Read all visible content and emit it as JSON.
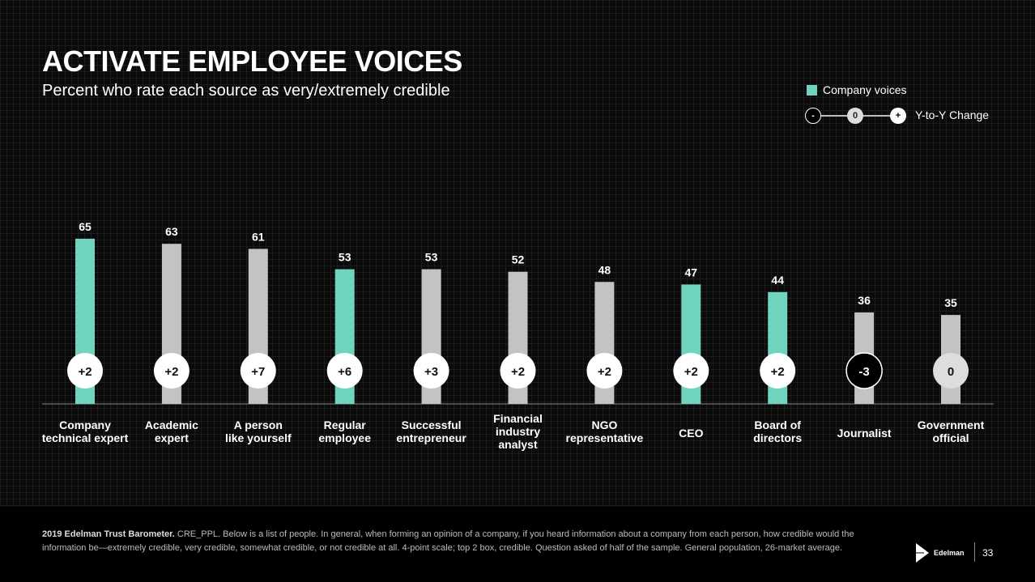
{
  "header": {
    "title": "ACTIVATE EMPLOYEE VOICES",
    "subtitle": "Percent who rate each source as very/extremely credible"
  },
  "legend": {
    "company_voices": "Company voices",
    "change_label": "Y-to-Y Change",
    "minus": "-",
    "zero": "0",
    "plus": "+"
  },
  "colors": {
    "company": "#6fd3c0",
    "other": "#c3c3c3"
  },
  "chart_data": {
    "type": "bar",
    "title": "ACTIVATE EMPLOYEE VOICES",
    "ylabel": "Percent who rate each source as very/extremely credible",
    "ylim": [
      0,
      100
    ],
    "categories": [
      [
        "Company",
        "technical expert"
      ],
      [
        "Academic",
        "expert"
      ],
      [
        "A person",
        "like yourself"
      ],
      [
        "Regular",
        "employee"
      ],
      [
        "Successful",
        "entrepreneur"
      ],
      [
        "Financial",
        "industry",
        "analyst"
      ],
      [
        "NGO",
        "representative"
      ],
      [
        "CEO"
      ],
      [
        "Board of",
        "directors"
      ],
      [
        "Journalist"
      ],
      [
        "Government",
        "official"
      ]
    ],
    "values": [
      65,
      63,
      61,
      53,
      53,
      52,
      48,
      47,
      44,
      36,
      35
    ],
    "company_voice": [
      true,
      false,
      false,
      true,
      false,
      false,
      false,
      true,
      true,
      false,
      false
    ],
    "change": [
      "+2",
      "+2",
      "+7",
      "+6",
      "+3",
      "+2",
      "+2",
      "+2",
      "+2",
      "-3",
      "0"
    ]
  },
  "footer": {
    "note_bold": "2019 Edelman Trust Barometer.",
    "note": " CRE_PPL. Below is a list of people. In general, when forming an opinion of a company, if you heard information about a company from each person, how credible would the information be—extremely credible, very credible, somewhat credible, or not credible at all. 4-point scale; top 2 box, credible. Question asked of half of the sample. General population, 26-market average.",
    "logo": "Edelman",
    "page": "33"
  }
}
